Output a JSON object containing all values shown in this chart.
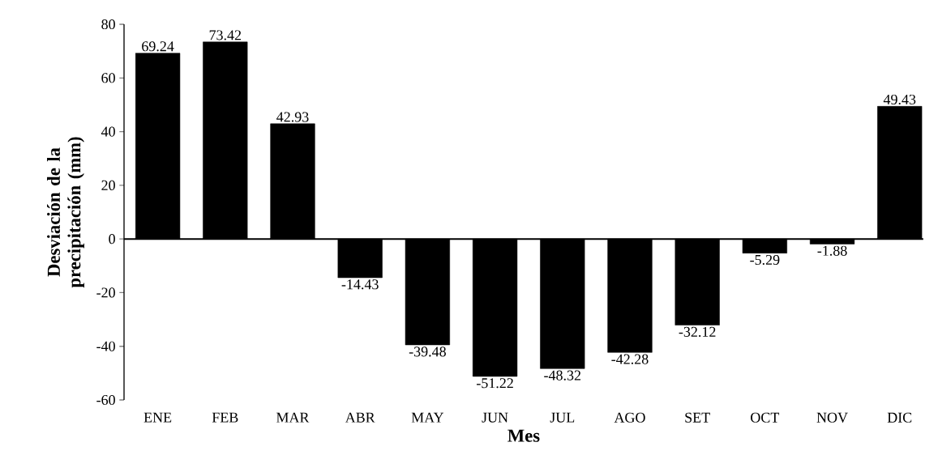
{
  "chart_data": {
    "type": "bar",
    "xlabel": "Mes",
    "ylabel": "Desviación de la precipitación (mm)",
    "categories": [
      "ENE",
      "FEB",
      "MAR",
      "ABR",
      "MAY",
      "JUN",
      "JUL",
      "AGO",
      "SET",
      "OCT",
      "NOV",
      "DIC"
    ],
    "values": [
      69.24,
      73.42,
      42.93,
      -14.43,
      -39.48,
      -51.22,
      -48.32,
      -42.28,
      -32.12,
      -5.29,
      -1.88,
      49.43
    ],
    "value_labels": [
      "69.24",
      "73.42",
      "42.93",
      "-14.43",
      "-39.48",
      "-51.22",
      "-48.32",
      "-42.28",
      "-32.12",
      "-5.29",
      "-1.88",
      "49.43"
    ],
    "color": "#000000",
    "ylim": [
      -60,
      80
    ],
    "yticks": [
      -60,
      -40,
      -20,
      0,
      20,
      40,
      60,
      80
    ]
  }
}
